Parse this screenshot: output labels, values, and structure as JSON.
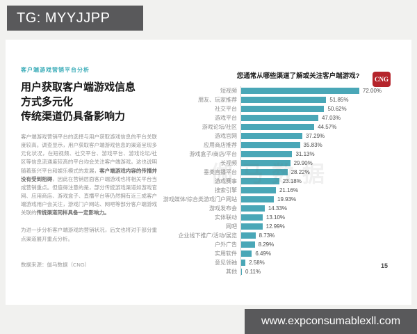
{
  "header_tag": {
    "text": "TG: MYYJJPP"
  },
  "footer": {
    "url": "www.expconsumablexll.com"
  },
  "slide": {
    "page_number": "15",
    "left": {
      "kicker": "客户端游戏营销平台分析",
      "title_lines": [
        "用户获取客户端游戏信息",
        "方式多元化",
        "传统渠道仍具备影响力"
      ],
      "para1": [
        {
          "text": "客户端游戏营销平台的选择与用户获取游戏信息的平台关联度较高。调查显示，用户获取客户端游戏信息的渠道呈现多元化状况，在短视频、社交平台、游戏平台、游戏论坛/社区等信息流通度较高的平台均会关注客户端游戏。这也说明随着新兴平台和娱乐模式的发展，",
          "bold": false
        },
        {
          "text": "客户端游戏内容的传播并没有受到阻碍",
          "bold": true
        },
        {
          "text": "，因此在营销层面客户端游戏也将相关平台当成营销重点。但值得注意的是，部分传统游戏渠道如游戏官网、应用商店、游戏盒子、直播平台等仍然拥有近三成客户端游戏用户会关注，游戏门户网站、网吧等部分客户端游戏关联的",
          "bold": false
        },
        {
          "text": "传统渠道同样具备一定影响力。",
          "bold": true
        }
      ],
      "para2": "为进一步分析客户端游戏的营销状况，后文也将对于部分重点渠道展开重点分析。",
      "source": "数据来源：伽马数据（CNG）"
    }
  },
  "chart_data": {
    "type": "bar",
    "orientation": "horizontal",
    "title": "您通常从哪些渠道了解或关注客户端游戏?",
    "unit": "%",
    "xlim": [
      0,
      80
    ],
    "grid": false,
    "bar_color": "#4aa7b7",
    "watermark": "伽马数据",
    "logo": "CNG",
    "categories": [
      "短视频",
      "朋友、玩家推荐",
      "社交平台",
      "游戏平台",
      "游戏论坛/社区",
      "游戏官网",
      "应用商店推荐",
      "游戏盒子/商店/平台",
      "长视频",
      "垂类直播平台",
      "游戏赛事",
      "搜索引擎",
      "游戏媒体/综合类游戏门户网站",
      "游戏发布会",
      "实体联动",
      "网吧",
      "企业线下推广/活动/展览",
      "户外广告",
      "实用软件",
      "意见领袖",
      "其他"
    ],
    "values": [
      72.0,
      51.85,
      50.62,
      47.03,
      44.57,
      37.29,
      35.83,
      31.13,
      29.9,
      28.22,
      23.18,
      21.16,
      19.93,
      14.33,
      13.1,
      12.99,
      8.73,
      8.29,
      6.49,
      2.58,
      0.11
    ],
    "value_labels": [
      "72.00%",
      "51.85%",
      "50.62%",
      "47.03%",
      "44.57%",
      "37.29%",
      "35.83%",
      "31.13%",
      "29.90%",
      "28.22%",
      "23.18%",
      "21.16%",
      "19.93%",
      "14.33%",
      "13.10%",
      "12.99%",
      "8.73%",
      "8.29%",
      "6.49%",
      "2.58%",
      "0.11%"
    ]
  }
}
